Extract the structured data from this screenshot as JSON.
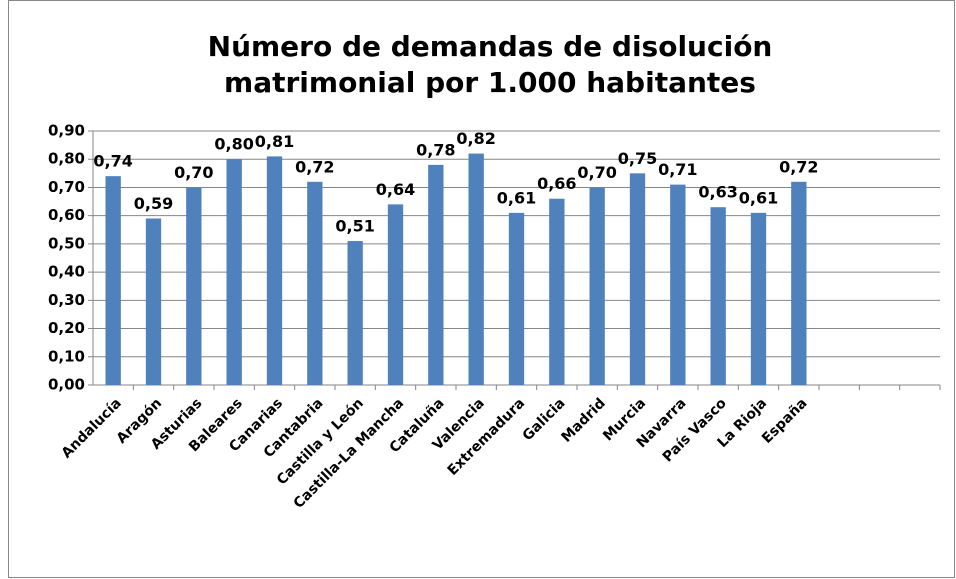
{
  "chart_data": {
    "type": "bar",
    "title": "Número de demandas de disolución",
    "subtitle": "matrimonial por 1.000 habitantes",
    "categories": [
      "Andalucía",
      "Aragón",
      "Asturias",
      "Baleares",
      "Canarias",
      "Cantabria",
      "Castilla y León",
      "Castilla-La Mancha",
      "Cataluña",
      "Valencia",
      "Extremadura",
      "Galicia",
      "Madrid",
      "Murcia",
      "Navarra",
      "País Vasco",
      "La Rioja",
      "España",
      null,
      null,
      null
    ],
    "values": [
      0.74,
      0.59,
      0.7,
      0.8,
      0.81,
      0.72,
      0.51,
      0.64,
      0.78,
      0.82,
      0.61,
      0.66,
      0.7,
      0.75,
      0.71,
      0.63,
      0.61,
      0.72,
      null,
      null,
      null
    ],
    "value_labels": [
      "0,74",
      "0,59",
      "0,70",
      "0,80",
      "0,81",
      "0,72",
      "0,51",
      "0,64",
      "0,78",
      "0,82",
      "0,61",
      "0,66",
      "0,70",
      "0,75",
      "0,71",
      "0,63",
      "0,61",
      "0,72",
      null,
      null,
      null
    ],
    "color": "#4f81bd",
    "ylim": [
      0,
      0.9
    ],
    "yticks": [
      {
        "value": 0,
        "label": "0,00"
      },
      {
        "value": 0.1,
        "label": "0,10"
      },
      {
        "value": 0.2,
        "label": "0,20"
      },
      {
        "value": 0.3,
        "label": "0,30"
      },
      {
        "value": 0.4,
        "label": "0,40"
      },
      {
        "value": 0.5,
        "label": "0,50"
      },
      {
        "value": 0.6,
        "label": "0,60"
      },
      {
        "value": 0.7,
        "label": "0,70"
      },
      {
        "value": 0.8,
        "label": "0,80"
      },
      {
        "value": 0.9,
        "label": "0,90"
      }
    ],
    "grid": true
  }
}
